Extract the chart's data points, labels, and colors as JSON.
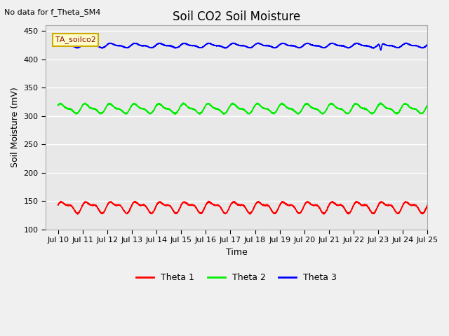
{
  "title": "Soil CO2 Soil Moisture",
  "no_data_text": "No data for f_Theta_SM4",
  "site_label": "TA_soilco2",
  "xlabel": "Time",
  "ylabel": "Soil Moisture (mV)",
  "ylim": [
    100,
    460
  ],
  "yticks": [
    100,
    150,
    200,
    250,
    300,
    350,
    400,
    450
  ],
  "xtick_labels": [
    "Jul 10",
    "Jul 11",
    "Jul 12",
    "Jul 13",
    "Jul 14",
    "Jul 15",
    "Jul 16",
    "Jul 17",
    "Jul 18",
    "Jul 19",
    "Jul 20",
    "Jul 21",
    "Jul 22",
    "Jul 23",
    "Jul 24",
    "Jul 25"
  ],
  "theta1_color": "#ff0000",
  "theta2_color": "#00ee00",
  "theta3_color": "#0000ff",
  "theta1_base": 140,
  "theta2_base": 313,
  "theta3_base": 424,
  "bg_color": "#f0f0f0",
  "plot_bg_color": "#e8e8e8",
  "legend_labels": [
    "Theta 1",
    "Theta 2",
    "Theta 3"
  ],
  "legend_colors": [
    "#ff0000",
    "#00ee00",
    "#0000ff"
  ],
  "title_fontsize": 12,
  "label_fontsize": 9,
  "tick_fontsize": 8
}
